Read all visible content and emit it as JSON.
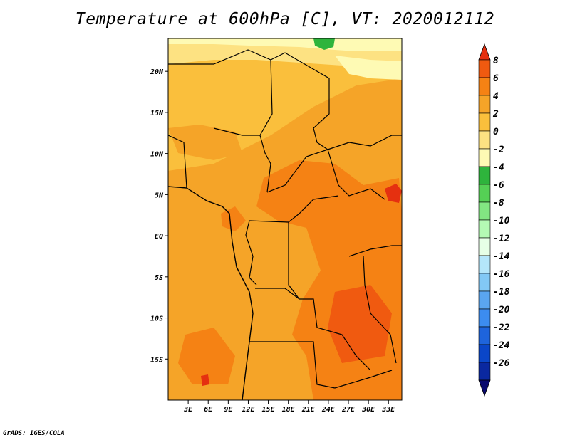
{
  "title": "Temperature at 600hPa [C], VT: 2020012112",
  "credit": "GrADS: IGES/COLA",
  "map": {
    "lon_range": [
      0,
      35
    ],
    "lat_range": [
      -20,
      24
    ],
    "lat_ticks": [
      {
        "value": 20,
        "label": "20N"
      },
      {
        "value": 15,
        "label": "15N"
      },
      {
        "value": 10,
        "label": "10N"
      },
      {
        "value": 5,
        "label": "5N"
      },
      {
        "value": 0,
        "label": "EQ"
      },
      {
        "value": -5,
        "label": "5S"
      },
      {
        "value": -10,
        "label": "10S"
      },
      {
        "value": -15,
        "label": "15S"
      }
    ],
    "lon_ticks": [
      {
        "value": 3,
        "label": "3E"
      },
      {
        "value": 6,
        "label": "6E"
      },
      {
        "value": 9,
        "label": "9E"
      },
      {
        "value": 12,
        "label": "12E"
      },
      {
        "value": 15,
        "label": "15E"
      },
      {
        "value": 18,
        "label": "18E"
      },
      {
        "value": 21,
        "label": "21E"
      },
      {
        "value": 24,
        "label": "24E"
      },
      {
        "value": 27,
        "label": "27E"
      },
      {
        "value": 30,
        "label": "30E"
      },
      {
        "value": 33,
        "label": "33E"
      }
    ]
  },
  "colorbar": {
    "labels": [
      "8",
      "6",
      "4",
      "2",
      "0",
      "-2",
      "-4",
      "-6",
      "-8",
      "-10",
      "-12",
      "-14",
      "-16",
      "-18",
      "-20",
      "-22",
      "-24",
      "-26"
    ],
    "colors": [
      "#e53010",
      "#f05a10",
      "#f58214",
      "#f5a428",
      "#fabf3c",
      "#fde282",
      "#fefab4",
      "#2eb43c",
      "#55d055",
      "#82e682",
      "#b4fab4",
      "#e6ffe6",
      "#b4e6fa",
      "#82c8f5",
      "#5aa5f0",
      "#3c8cf0",
      "#1e64dc",
      "#0a46c8",
      "#0a28a0",
      "#0a0a6e"
    ]
  }
}
